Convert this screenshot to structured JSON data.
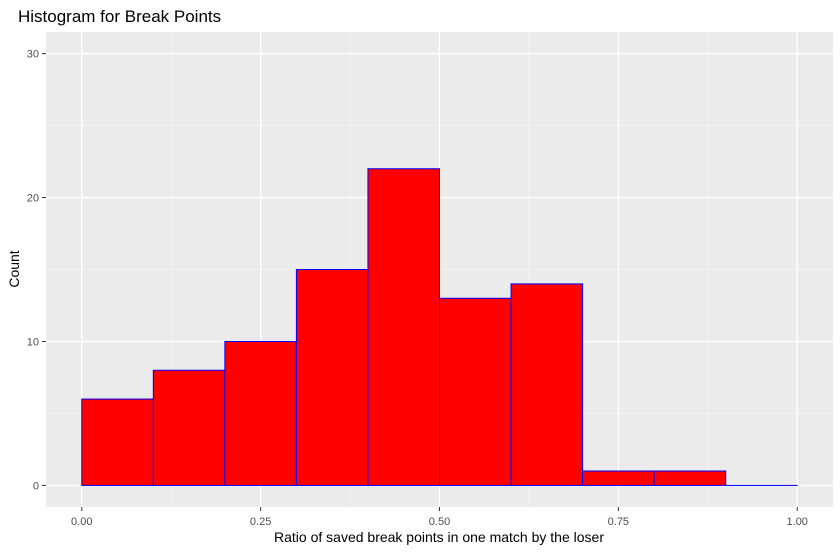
{
  "chart_data": {
    "type": "bar",
    "title": "Histogram for Break Points",
    "xlabel": "Ratio of saved break points in one match by the loser",
    "ylabel": "Count",
    "bins": [
      {
        "start": 0.0,
        "end": 0.1,
        "count": 6
      },
      {
        "start": 0.1,
        "end": 0.2,
        "count": 8
      },
      {
        "start": 0.2,
        "end": 0.3,
        "count": 10
      },
      {
        "start": 0.3,
        "end": 0.4,
        "count": 15
      },
      {
        "start": 0.4,
        "end": 0.5,
        "count": 22
      },
      {
        "start": 0.5,
        "end": 0.6,
        "count": 13
      },
      {
        "start": 0.6,
        "end": 0.7,
        "count": 14
      },
      {
        "start": 0.7,
        "end": 0.8,
        "count": 1
      },
      {
        "start": 0.8,
        "end": 0.9,
        "count": 1
      },
      {
        "start": 0.9,
        "end": 1.0,
        "count": 0
      }
    ],
    "xlim": [
      -0.05,
      1.05
    ],
    "ylim": [
      -1.5,
      31.5
    ],
    "x_ticks": [
      {
        "value": 0.0,
        "label": "0.00"
      },
      {
        "value": 0.25,
        "label": "0.25"
      },
      {
        "value": 0.5,
        "label": "0.50"
      },
      {
        "value": 0.75,
        "label": "0.75"
      },
      {
        "value": 1.0,
        "label": "1.00"
      }
    ],
    "y_ticks": [
      {
        "value": 0,
        "label": "0"
      },
      {
        "value": 10,
        "label": "10"
      },
      {
        "value": 20,
        "label": "20"
      },
      {
        "value": 30,
        "label": "30"
      }
    ],
    "grid": true,
    "colors": {
      "panel_background": "#ebebeb",
      "grid_major": "#ffffff",
      "grid_minor": "#f5f5f5",
      "bar_fill": "#ff0000",
      "bar_outline": "#0000ff"
    }
  }
}
